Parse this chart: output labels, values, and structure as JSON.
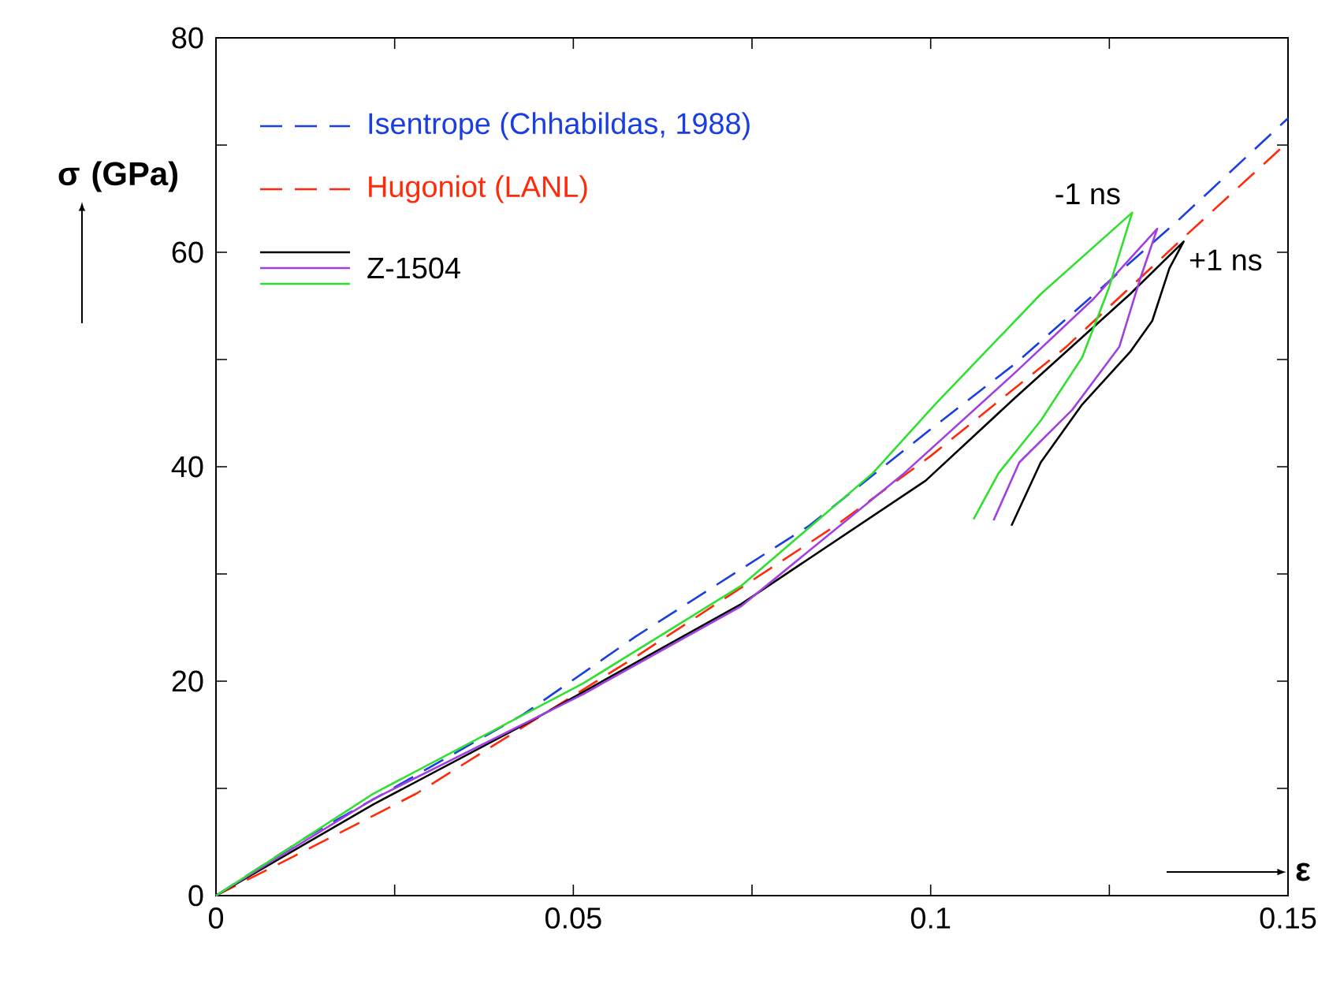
{
  "chart_data": {
    "type": "line",
    "xlabel": "ε",
    "ylabel": "σ (GPa)",
    "xlim": [
      0,
      0.15
    ],
    "ylim": [
      0,
      80
    ],
    "xticks": [
      0,
      {
        "value": 0.025,
        "label": null
      },
      0.05,
      {
        "value": 0.075,
        "label": null
      },
      0.1,
      {
        "value": 0.125,
        "label": null
      },
      0.15
    ],
    "yticks": [
      0,
      {
        "value": 10,
        "label": null
      },
      20,
      {
        "value": 30,
        "label": null
      },
      40,
      {
        "value": 50,
        "label": null
      },
      60,
      {
        "value": 70,
        "label": null
      },
      80
    ],
    "legend": "top left",
    "grid": false,
    "marker": "none",
    "annotations": [
      {
        "text": "-1 ns",
        "x": 0.1282,
        "y": 63.7
      },
      {
        "text": "+1 ns",
        "x": 0.1354,
        "y": 61
      }
    ],
    "series": [
      {
        "name": "Isentrope (Chhabildas, 1988)",
        "color": "#1a3ee0",
        "line_style": "dashed",
        "x": [
          0,
          0.013,
          0.025,
          0.043,
          0.0588,
          0.083,
          0.1,
          0.112,
          0.1345,
          0.15
        ],
        "values": [
          0,
          5.6,
          10.1,
          16.9,
          24.2,
          34.5,
          43.5,
          49.7,
          62.9,
          72.5
        ]
      },
      {
        "name": "Hugoniot (LANL)",
        "color": "#ff2a0a",
        "line_style": "dashed",
        "x": [
          0,
          0.011,
          0.028,
          0.0588,
          0.0867,
          0.1,
          0.119,
          0.1356,
          0.15
        ],
        "values": [
          0,
          3.7,
          9.5,
          22.3,
          34.5,
          41,
          51.2,
          61.5,
          70.3
        ]
      },
      {
        "name": "Z-1504",
        "color": "#000000",
        "line_style": "solid",
        "x": [
          0,
          0.022,
          0.0441,
          0.0735,
          0.0993,
          0.1116,
          0.1279,
          0.1354,
          0.1334,
          0.131,
          0.1279,
          0.1212,
          0.1154,
          0.1113
        ],
        "values": [
          0,
          8.5,
          16.3,
          27.2,
          38.7,
          46.3,
          56.1,
          61,
          58.5,
          53.6,
          50.7,
          45.8,
          40.4,
          34.5
        ]
      },
      {
        "color": "#a040e0",
        "line_style": "solid",
        "x": [
          0,
          0.022,
          0.0514,
          0.0735,
          0.0963,
          0.1117,
          0.1227,
          0.1317,
          0.1293,
          0.1264,
          0.1198,
          0.1124,
          0.1088
        ],
        "values": [
          0,
          9.0,
          18.8,
          27.0,
          39.4,
          48.7,
          55.6,
          62.2,
          57.5,
          51.2,
          45.3,
          40.4,
          35
        ]
      },
      {
        "color": "#30e030",
        "line_style": "solid",
        "x": [
          0,
          0.022,
          0.0514,
          0.0735,
          0.0919,
          0.1006,
          0.1154,
          0.1282,
          0.1249,
          0.1212,
          0.1154,
          0.1095,
          0.106
        ],
        "values": [
          0,
          9.5,
          19.8,
          28.9,
          39.4,
          45.8,
          56.1,
          63.7,
          56.6,
          50.2,
          44.3,
          39.4,
          35.1
        ]
      }
    ]
  }
}
